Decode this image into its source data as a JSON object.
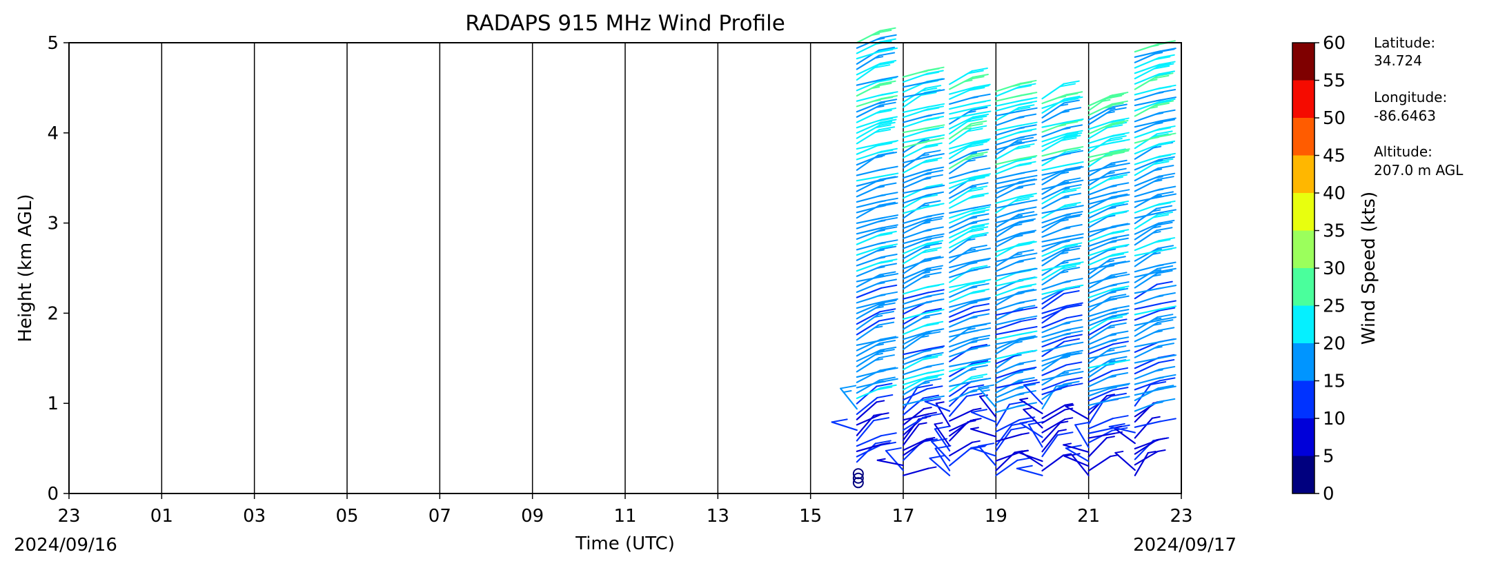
{
  "chart_data": {
    "type": "wind-barb-profile",
    "title": "RADAPS 915 MHz Wind Profile",
    "xlabel": "Time (UTC)",
    "ylabel": "Height (km AGL)",
    "x_ticks": [
      "23",
      "01",
      "03",
      "05",
      "07",
      "09",
      "11",
      "13",
      "15",
      "17",
      "19",
      "21",
      "23"
    ],
    "x_tick_hours": [
      -1,
      1,
      3,
      5,
      7,
      9,
      11,
      13,
      15,
      17,
      19,
      21,
      23
    ],
    "xlim_hours": [
      -1,
      23
    ],
    "start_date": "2024/09/16",
    "end_date": "2024/09/17",
    "y_ticks": [
      0,
      1,
      2,
      3,
      4,
      5
    ],
    "ylim": [
      0,
      5
    ],
    "grid_x": true,
    "colorbar": {
      "label": "Wind Speed (kts)",
      "ticks": [
        0,
        5,
        10,
        15,
        20,
        25,
        30,
        35,
        40,
        45,
        50,
        55,
        60
      ],
      "colors": [
        "#00007f",
        "#0000d9",
        "#0033ff",
        "#0095ff",
        "#05f0ff",
        "#4aff9c",
        "#9bff5c",
        "#e8ff0e",
        "#ffb700",
        "#ff5c00",
        "#f50b00",
        "#7f0000"
      ]
    },
    "profile_times": [
      16.0,
      17.0,
      18.0,
      19.0,
      20.0,
      21.0,
      22.0
    ],
    "calm_markers": [
      {
        "time": 16.0,
        "height": 0.12
      },
      {
        "time": 16.0,
        "height": 0.17
      },
      {
        "time": 16.0,
        "height": 0.22
      }
    ],
    "station_info": {
      "latitude_label": "Latitude:",
      "latitude": "34.724",
      "longitude_label": "Longitude:",
      "longitude": "-86.6463",
      "altitude_label": "Altitude:",
      "altitude": "207.0 m AGL"
    }
  }
}
